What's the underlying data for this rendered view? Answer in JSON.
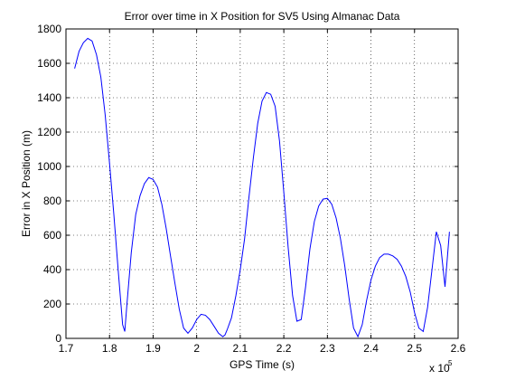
{
  "chart_data": {
    "type": "line",
    "title": "Error over time in X Position for SV5 Using Almanac Data",
    "xlabel": "GPS Time (s)",
    "ylabel": "Error in X Position (m)",
    "x_multiplier_label": "x 10",
    "x_multiplier_exponent": "5",
    "xlim": [
      1.7,
      2.6
    ],
    "ylim": [
      0,
      1800
    ],
    "x_ticks": [
      1.7,
      1.8,
      1.9,
      2.0,
      2.1,
      2.2,
      2.3,
      2.4,
      2.5,
      2.6
    ],
    "x_tick_labels": [
      "1.7",
      "1.8",
      "1.9",
      "2",
      "2.1",
      "2.2",
      "2.3",
      "2.4",
      "2.5",
      "2.6"
    ],
    "y_ticks": [
      0,
      200,
      400,
      600,
      800,
      1000,
      1200,
      1400,
      1600,
      1800
    ],
    "y_tick_labels": [
      "0",
      "200",
      "400",
      "600",
      "800",
      "1000",
      "1200",
      "1400",
      "1600",
      "1800"
    ],
    "grid": true,
    "line_color": "#0000ff",
    "series": [
      {
        "x": [
          1.72,
          1.73,
          1.74,
          1.75,
          1.76,
          1.77,
          1.78,
          1.79,
          1.8,
          1.81,
          1.82,
          1.83,
          1.835,
          1.84,
          1.85,
          1.86,
          1.87,
          1.88,
          1.89,
          1.9,
          1.91,
          1.92,
          1.93,
          1.94,
          1.95,
          1.96,
          1.97,
          1.98,
          1.99,
          2.0,
          2.01,
          2.02,
          2.03,
          2.04,
          2.05,
          2.06,
          2.065,
          2.07,
          2.08,
          2.09,
          2.1,
          2.11,
          2.12,
          2.13,
          2.14,
          2.15,
          2.16,
          2.17,
          2.18,
          2.19,
          2.2,
          2.21,
          2.22,
          2.23,
          2.24,
          2.25,
          2.26,
          2.27,
          2.28,
          2.29,
          2.3,
          2.31,
          2.32,
          2.33,
          2.34,
          2.35,
          2.36,
          2.37,
          2.38,
          2.39,
          2.4,
          2.41,
          2.42,
          2.43,
          2.44,
          2.45,
          2.46,
          2.47,
          2.48,
          2.49,
          2.5,
          2.51,
          2.52,
          2.53,
          2.54,
          2.55,
          2.56,
          2.57,
          2.58
        ],
        "y": [
          1570,
          1670,
          1720,
          1745,
          1730,
          1650,
          1520,
          1300,
          1020,
          720,
          390,
          80,
          40,
          200,
          500,
          720,
          830,
          900,
          935,
          925,
          880,
          780,
          640,
          480,
          320,
          170,
          60,
          30,
          60,
          110,
          140,
          135,
          110,
          70,
          30,
          10,
          20,
          50,
          120,
          250,
          400,
          580,
          820,
          1050,
          1250,
          1380,
          1430,
          1420,
          1350,
          1150,
          850,
          530,
          250,
          100,
          110,
          300,
          520,
          680,
          770,
          810,
          815,
          780,
          700,
          580,
          420,
          230,
          60,
          10,
          80,
          220,
          340,
          420,
          470,
          490,
          490,
          480,
          460,
          420,
          360,
          270,
          150,
          60,
          40,
          180,
          400,
          620,
          540,
          300,
          620
        ]
      }
    ]
  }
}
